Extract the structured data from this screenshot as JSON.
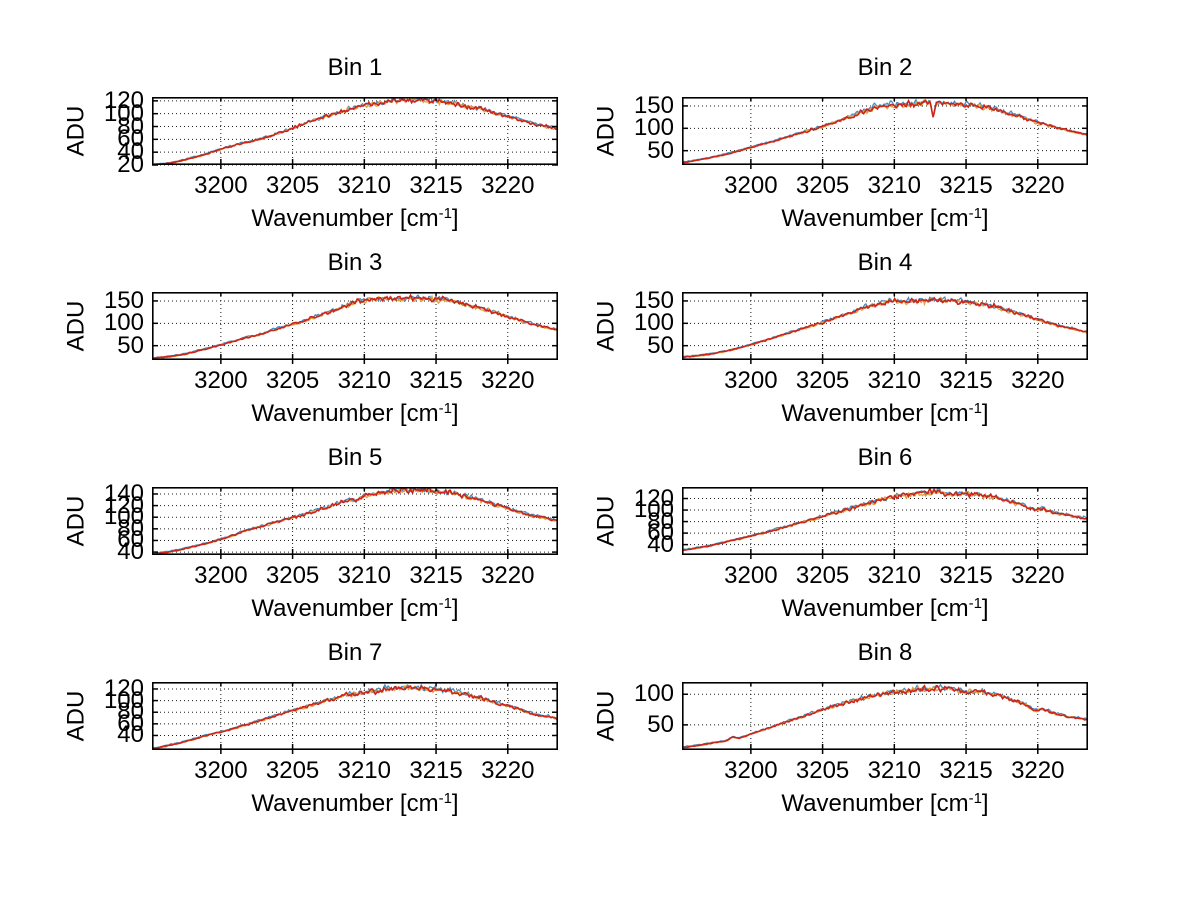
{
  "figure": {
    "background": "#ffffff",
    "ylabel": "ADU",
    "xlabel": {
      "main": "Wavenumber [cm",
      "sup": "-1",
      "end": "]"
    },
    "grid": true,
    "grid_color": "#1a1a1a",
    "axis_color": "#000000",
    "text_color": "#000000",
    "line_colors": {
      "primary": "#cc241c",
      "secondary": "#e0a03c",
      "tertiary": "#3f8fc4"
    }
  },
  "chart_data": [
    {
      "type": "line",
      "title": "Bin 1",
      "xlim": [
        3195.2,
        3223.5
      ],
      "xticks": [
        3200,
        3205,
        3210,
        3215,
        3220
      ],
      "ylim": [
        20,
        126
      ],
      "yticks": [
        20,
        40,
        60,
        80,
        100,
        120
      ],
      "points": [
        [
          3195.2,
          20
        ],
        [
          3196.5,
          23
        ],
        [
          3197.5,
          28
        ],
        [
          3198.5,
          34
        ],
        [
          3199.5,
          41
        ],
        [
          3200.5,
          48
        ],
        [
          3201.5,
          54
        ],
        [
          3202.2,
          57
        ],
        [
          3203,
          62
        ],
        [
          3204,
          69
        ],
        [
          3205,
          77
        ],
        [
          3206,
          86
        ],
        [
          3207,
          93
        ],
        [
          3208,
          100
        ],
        [
          3209,
          107
        ],
        [
          3210,
          113
        ],
        [
          3211,
          117
        ],
        [
          3212,
          120
        ],
        [
          3213,
          122
        ],
        [
          3214,
          121
        ],
        [
          3215,
          120
        ],
        [
          3216,
          117
        ],
        [
          3217,
          113
        ],
        [
          3218,
          108
        ],
        [
          3219,
          102
        ],
        [
          3220,
          96
        ],
        [
          3221,
          89
        ],
        [
          3222,
          83
        ],
        [
          3223.5,
          76
        ]
      ]
    },
    {
      "type": "line",
      "title": "Bin 2",
      "xlim": [
        3195.2,
        3223.5
      ],
      "xticks": [
        3200,
        3205,
        3210,
        3215,
        3220
      ],
      "ylim": [
        18,
        170
      ],
      "yticks": [
        50,
        100,
        150
      ],
      "points": [
        [
          3195.2,
          23
        ],
        [
          3197,
          33
        ],
        [
          3198,
          40
        ],
        [
          3199,
          48
        ],
        [
          3200,
          57
        ],
        [
          3201,
          66
        ],
        [
          3202,
          75
        ],
        [
          3203,
          85
        ],
        [
          3204,
          95
        ],
        [
          3205,
          104
        ],
        [
          3206,
          115
        ],
        [
          3207,
          126
        ],
        [
          3208,
          139
        ],
        [
          3208.7,
          148
        ],
        [
          3209.5,
          152
        ],
        [
          3210,
          151
        ],
        [
          3211,
          154
        ],
        [
          3212,
          157
        ],
        [
          3212.5,
          156
        ],
        [
          3212.7,
          128
        ],
        [
          3212.9,
          154
        ],
        [
          3213.5,
          157
        ],
        [
          3214,
          156
        ],
        [
          3215,
          153
        ],
        [
          3215.8,
          151
        ],
        [
          3216.5,
          148
        ],
        [
          3217,
          143
        ],
        [
          3218,
          133
        ],
        [
          3219,
          124
        ],
        [
          3220,
          113
        ],
        [
          3221,
          104
        ],
        [
          3222,
          96
        ],
        [
          3223.5,
          85
        ]
      ]
    },
    {
      "type": "line",
      "title": "Bin 3",
      "xlim": [
        3195.2,
        3223.5
      ],
      "xticks": [
        3200,
        3205,
        3210,
        3215,
        3220
      ],
      "ylim": [
        18,
        170
      ],
      "yticks": [
        50,
        100,
        150
      ],
      "points": [
        [
          3195.2,
          21
        ],
        [
          3197,
          28
        ],
        [
          3198,
          35
        ],
        [
          3199,
          43
        ],
        [
          3200,
          52
        ],
        [
          3201,
          61
        ],
        [
          3202,
          70
        ],
        [
          3202.6,
          74
        ],
        [
          3203.5,
          83
        ],
        [
          3204.5,
          93
        ],
        [
          3205.5,
          102
        ],
        [
          3206.5,
          113
        ],
        [
          3207.5,
          125
        ],
        [
          3208.5,
          137
        ],
        [
          3209.3,
          147
        ],
        [
          3210,
          151
        ],
        [
          3211,
          154
        ],
        [
          3212,
          156
        ],
        [
          3213,
          154
        ],
        [
          3214,
          156
        ],
        [
          3215,
          153
        ],
        [
          3216,
          150
        ],
        [
          3217,
          143
        ],
        [
          3218,
          134
        ],
        [
          3219,
          126
        ],
        [
          3220,
          115
        ],
        [
          3221,
          105
        ],
        [
          3222,
          96
        ],
        [
          3223.5,
          85
        ]
      ]
    },
    {
      "type": "line",
      "title": "Bin 4",
      "xlim": [
        3195.2,
        3223.5
      ],
      "xticks": [
        3200,
        3205,
        3210,
        3215,
        3220
      ],
      "ylim": [
        18,
        170
      ],
      "yticks": [
        50,
        100,
        150
      ],
      "points": [
        [
          3195.2,
          24
        ],
        [
          3197,
          30
        ],
        [
          3198,
          36
        ],
        [
          3199,
          43
        ],
        [
          3200,
          52
        ],
        [
          3201,
          62
        ],
        [
          3202,
          72
        ],
        [
          3203,
          82
        ],
        [
          3204,
          92
        ],
        [
          3205,
          102
        ],
        [
          3206,
          113
        ],
        [
          3207,
          124
        ],
        [
          3208,
          136
        ],
        [
          3209,
          144
        ],
        [
          3210,
          150
        ],
        [
          3211,
          148
        ],
        [
          3212,
          152
        ],
        [
          3213,
          151
        ],
        [
          3214,
          150
        ],
        [
          3215,
          148
        ],
        [
          3216,
          143
        ],
        [
          3217,
          138
        ],
        [
          3218,
          128
        ],
        [
          3219,
          118
        ],
        [
          3220,
          108
        ],
        [
          3221,
          99
        ],
        [
          3222,
          90
        ],
        [
          3223.5,
          80
        ]
      ]
    },
    {
      "type": "line",
      "title": "Bin 5",
      "xlim": [
        3195.2,
        3223.5
      ],
      "xticks": [
        3200,
        3205,
        3210,
        3215,
        3220
      ],
      "ylim": [
        35,
        152
      ],
      "yticks": [
        40,
        60,
        80,
        100,
        120,
        140
      ],
      "points": [
        [
          3195.2,
          36
        ],
        [
          3197,
          43
        ],
        [
          3198,
          49
        ],
        [
          3199,
          55
        ],
        [
          3200,
          62
        ],
        [
          3201,
          70
        ],
        [
          3201.8,
          78
        ],
        [
          3202.5,
          82
        ],
        [
          3203.5,
          89
        ],
        [
          3204.5,
          96
        ],
        [
          3205.5,
          103
        ],
        [
          3206.5,
          110
        ],
        [
          3207.5,
          118
        ],
        [
          3208.5,
          127
        ],
        [
          3209,
          132
        ],
        [
          3209.4,
          128
        ],
        [
          3210,
          138
        ],
        [
          3211,
          142
        ],
        [
          3212,
          146
        ],
        [
          3213,
          145
        ],
        [
          3214,
          147
        ],
        [
          3215,
          144
        ],
        [
          3215.7,
          143
        ],
        [
          3216.5,
          139
        ],
        [
          3217.5,
          134
        ],
        [
          3218.5,
          126
        ],
        [
          3219.5,
          119
        ],
        [
          3220.5,
          111
        ],
        [
          3221.5,
          104
        ],
        [
          3222.5,
          99
        ],
        [
          3223.5,
          94
        ]
      ]
    },
    {
      "type": "line",
      "title": "Bin 6",
      "xlim": [
        3195.2,
        3223.5
      ],
      "xticks": [
        3200,
        3205,
        3210,
        3215,
        3220
      ],
      "ylim": [
        22,
        140
      ],
      "yticks": [
        40,
        60,
        80,
        100,
        120
      ],
      "points": [
        [
          3195.2,
          30
        ],
        [
          3197,
          37
        ],
        [
          3198,
          43
        ],
        [
          3199,
          49
        ],
        [
          3200,
          55
        ],
        [
          3201,
          61
        ],
        [
          3202,
          68
        ],
        [
          3203,
          75
        ],
        [
          3204,
          82
        ],
        [
          3205,
          89
        ],
        [
          3206,
          96
        ],
        [
          3207,
          103
        ],
        [
          3208,
          110
        ],
        [
          3209,
          117
        ],
        [
          3210,
          124
        ],
        [
          3210.5,
          128
        ],
        [
          3211,
          126
        ],
        [
          3212,
          130
        ],
        [
          3213,
          132
        ],
        [
          3214,
          128
        ],
        [
          3215,
          127
        ],
        [
          3216,
          126
        ],
        [
          3217,
          122
        ],
        [
          3218,
          115
        ],
        [
          3219,
          108
        ],
        [
          3219.8,
          100
        ],
        [
          3220.3,
          103
        ],
        [
          3221,
          96
        ],
        [
          3222,
          91
        ],
        [
          3223.5,
          85
        ]
      ]
    },
    {
      "type": "line",
      "title": "Bin 7",
      "xlim": [
        3195.2,
        3223.5
      ],
      "xticks": [
        3200,
        3205,
        3210,
        3215,
        3220
      ],
      "ylim": [
        15,
        132
      ],
      "yticks": [
        40,
        60,
        80,
        100,
        120
      ],
      "points": [
        [
          3195.2,
          17
        ],
        [
          3197,
          26
        ],
        [
          3198,
          33
        ],
        [
          3199,
          40
        ],
        [
          3200,
          46
        ],
        [
          3201,
          53
        ],
        [
          3202,
          60
        ],
        [
          3203,
          68
        ],
        [
          3204,
          75
        ],
        [
          3205,
          83
        ],
        [
          3206,
          90
        ],
        [
          3207,
          97
        ],
        [
          3208,
          104
        ],
        [
          3208.8,
          110
        ],
        [
          3209.5,
          112
        ],
        [
          3210,
          114
        ],
        [
          3211,
          118
        ],
        [
          3212,
          121
        ],
        [
          3213,
          123
        ],
        [
          3214,
          121
        ],
        [
          3215,
          119
        ],
        [
          3216,
          117
        ],
        [
          3217,
          112
        ],
        [
          3218,
          105
        ],
        [
          3219,
          97
        ],
        [
          3219.6,
          93
        ],
        [
          3220.2,
          90
        ],
        [
          3221,
          83
        ],
        [
          3222,
          76
        ],
        [
          3223.5,
          69
        ]
      ]
    },
    {
      "type": "line",
      "title": "Bin 8",
      "xlim": [
        3195.2,
        3223.5
      ],
      "xticks": [
        3200,
        3205,
        3210,
        3215,
        3220
      ],
      "ylim": [
        9,
        120
      ],
      "yticks": [
        50,
        100
      ],
      "points": [
        [
          3195.2,
          13
        ],
        [
          3196.5,
          17
        ],
        [
          3197.5,
          21
        ],
        [
          3198.3,
          24
        ],
        [
          3198.7,
          30
        ],
        [
          3199.2,
          28
        ],
        [
          3200,
          35
        ],
        [
          3201,
          43
        ],
        [
          3202,
          51
        ],
        [
          3203,
          59
        ],
        [
          3204,
          67
        ],
        [
          3205,
          75
        ],
        [
          3206,
          82
        ],
        [
          3207,
          89
        ],
        [
          3208,
          95
        ],
        [
          3209,
          100
        ],
        [
          3210,
          104
        ],
        [
          3211,
          106
        ],
        [
          3212,
          108
        ],
        [
          3213,
          110
        ],
        [
          3214,
          108
        ],
        [
          3215,
          105
        ],
        [
          3216,
          103
        ],
        [
          3217,
          100
        ],
        [
          3217.6,
          97
        ],
        [
          3218,
          92
        ],
        [
          3219,
          86
        ],
        [
          3219.8,
          73
        ],
        [
          3220.4,
          76
        ],
        [
          3221,
          70
        ],
        [
          3222,
          64
        ],
        [
          3223.5,
          58
        ]
      ]
    }
  ]
}
